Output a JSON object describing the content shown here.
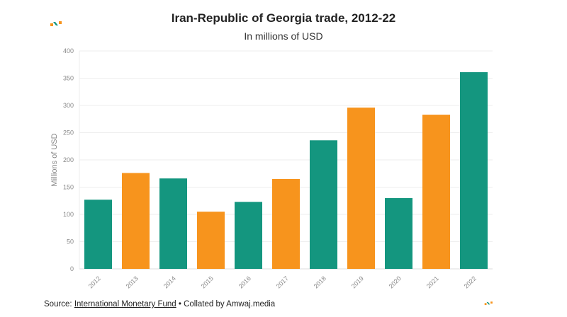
{
  "chart_data": {
    "type": "bar",
    "title": "Iran-Republic of Georgia trade, 2012-22",
    "subtitle": "In millions of USD",
    "xlabel": "",
    "ylabel": "Millions of USD",
    "ylim": [
      0,
      400
    ],
    "yticks": [
      0,
      50,
      100,
      150,
      200,
      250,
      300,
      350,
      400
    ],
    "grid": true,
    "categories": [
      "2012",
      "2013",
      "2014",
      "2015",
      "2016",
      "2017",
      "2018",
      "2019",
      "2020",
      "2021",
      "2022"
    ],
    "values": [
      127,
      176,
      166,
      105,
      123,
      165,
      236,
      296,
      130,
      283,
      361
    ],
    "bar_colors": [
      "#14967f",
      "#f7941d",
      "#14967f",
      "#f7941d",
      "#14967f",
      "#f7941d",
      "#14967f",
      "#f7941d",
      "#14967f",
      "#f7941d",
      "#14967f"
    ]
  },
  "footer": {
    "source_prefix": "Source: ",
    "source_link": "International Monetary Fund",
    "suffix": " • Collated by Amwaj.media"
  },
  "colors": {
    "teal": "#14967f",
    "orange": "#f7941d"
  }
}
